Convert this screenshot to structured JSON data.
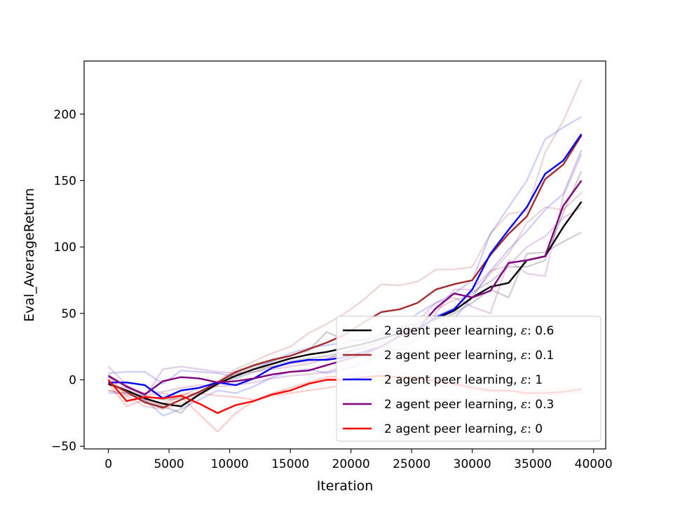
{
  "chart_data": {
    "type": "line",
    "title": "",
    "xlabel": "Iteration",
    "ylabel": "Eval_AverageReturn",
    "xlim": [
      -2000,
      41000
    ],
    "ylim": [
      -52,
      240
    ],
    "xticks": [
      0,
      5000,
      10000,
      15000,
      20000,
      25000,
      30000,
      35000,
      40000
    ],
    "yticks": [
      -50,
      0,
      50,
      100,
      150,
      200
    ],
    "xtick_labels": [
      "0",
      "5000",
      "10000",
      "15000",
      "20000",
      "25000",
      "30000",
      "35000",
      "40000"
    ],
    "ytick_labels": [
      "−50",
      "0",
      "50",
      "100",
      "150",
      "200"
    ],
    "grid": false,
    "legend_position": "lower right",
    "x": [
      0,
      1500,
      3000,
      4500,
      6000,
      7500,
      9000,
      10500,
      12000,
      13500,
      15000,
      16500,
      18000,
      19500,
      21000,
      22500,
      24000,
      25500,
      27000,
      28500,
      30000,
      31500,
      33000,
      34500,
      36000,
      37500,
      39000
    ],
    "series": [
      {
        "name": "2 agent peer learning, ε: 0.6",
        "legend_prefix": "2 agent peer learning, ",
        "legend_eps_label": "ε",
        "legend_value": ": 0.6",
        "color": "#000000",
        "values": [
          -3,
          -8,
          -14,
          -18,
          -20,
          -11,
          -3,
          3,
          8,
          12,
          16,
          19,
          21,
          24,
          27,
          31,
          35,
          39,
          46,
          52,
          62,
          70,
          73,
          90,
          93,
          115,
          134
        ],
        "runs": [
          [
            -8,
            -10,
            -16,
            -20,
            -25,
            -10,
            -2,
            1,
            6,
            10,
            14,
            16,
            18,
            21,
            24,
            28,
            32,
            38,
            44,
            50,
            58,
            68,
            62,
            95,
            96,
            104,
            111
          ],
          [
            2,
            -5,
            -12,
            -15,
            -14,
            -11,
            -4,
            5,
            10,
            14,
            18,
            22,
            36,
            30,
            30,
            34,
            40,
            42,
            48,
            54,
            66,
            74,
            85,
            85,
            90,
            126,
            157
          ]
        ]
      },
      {
        "name": "2 agent peer learning, ε: 0.1",
        "legend_prefix": "2 agent peer learning, ",
        "legend_eps_label": "ε",
        "legend_value": ": 0.1",
        "color": "#a52a2a",
        "values": [
          -2,
          -9,
          -17,
          -21,
          -15,
          -9,
          -2,
          6,
          11,
          15,
          18,
          23,
          28,
          34,
          43,
          51,
          53,
          58,
          68,
          72,
          75,
          94,
          110,
          123,
          151,
          162,
          184
        ],
        "runs": [
          [
            4,
            -6,
            -14,
            -20,
            -12,
            -6,
            -1,
            8,
            14,
            20,
            25,
            35,
            42,
            50,
            60,
            72,
            71,
            74,
            83,
            83,
            85,
            110,
            125,
            127,
            171,
            195,
            226
          ],
          [
            -8,
            -12,
            -20,
            -22,
            -18,
            -12,
            -3,
            4,
            8,
            10,
            12,
            14,
            16,
            20,
            26,
            30,
            35,
            42,
            53,
            60,
            64,
            80,
            95,
            118,
            130,
            128,
            141
          ]
        ]
      },
      {
        "name": "2 agent peer learning, ε: 1",
        "legend_prefix": "2 agent peer learning, ",
        "legend_eps_label": "ε",
        "legend_value": ": 1",
        "color": "#0000ff",
        "values": [
          -2,
          -2,
          -4,
          -14,
          -8,
          -6,
          -2,
          -4,
          1,
          9,
          13,
          15,
          15,
          17,
          21,
          25,
          33,
          38,
          47,
          53,
          68,
          95,
          113,
          130,
          155,
          165,
          185
        ],
        "runs": [
          [
            5,
            6,
            6,
            -3,
            7,
            6,
            5,
            2,
            8,
            14,
            20,
            24,
            26,
            28,
            30,
            32,
            38,
            50,
            58,
            65,
            75,
            110,
            130,
            150,
            181,
            190,
            198
          ],
          [
            -10,
            -10,
            -15,
            -27,
            -22,
            -15,
            -8,
            -10,
            -5,
            2,
            6,
            8,
            5,
            8,
            12,
            18,
            25,
            30,
            38,
            46,
            62,
            82,
            98,
            112,
            128,
            140,
            173
          ]
        ]
      },
      {
        "name": "2 agent peer learning, ε: 0.3",
        "legend_prefix": "2 agent peer learning, ",
        "legend_eps_label": "ε",
        "legend_value": ": 0.3",
        "color": "#800080",
        "values": [
          3,
          -5,
          -11,
          -1,
          2,
          1,
          -2,
          -1,
          1,
          4,
          6,
          7,
          11,
          15,
          19,
          25,
          33,
          38,
          54,
          65,
          62,
          67,
          88,
          90,
          93,
          131,
          150
        ],
        "runs": [
          [
            10,
            -4,
            -13,
            8,
            10,
            8,
            6,
            5,
            6,
            8,
            10,
            12,
            16,
            20,
            24,
            30,
            38,
            44,
            58,
            62,
            55,
            50,
            90,
            80,
            78,
            138,
            170
          ],
          [
            -4,
            -6,
            -10,
            -9,
            -6,
            -4,
            -5,
            -4,
            -2,
            1,
            3,
            4,
            6,
            10,
            14,
            20,
            28,
            34,
            50,
            68,
            68,
            82,
            86,
            100,
            108,
            122,
            130
          ]
        ]
      },
      {
        "name": "2 agent peer learning, ε: 0",
        "legend_prefix": "2 agent peer learning, ",
        "legend_eps_label": "ε",
        "legend_value": ": 0",
        "color": "#ff0000",
        "values": [
          0,
          -16,
          -13,
          -14,
          -12,
          -18,
          -25,
          -19,
          -16,
          -11,
          -8,
          -3,
          0,
          0,
          2,
          3,
          2,
          1,
          -1,
          -3,
          -6,
          -8,
          -8,
          -10,
          -10,
          -9,
          -7
        ],
        "runs": [
          [
            3,
            -12,
            -12,
            -10,
            -13,
            -26,
            -39,
            -25,
            -16,
            -10,
            -6,
            -2,
            2,
            3,
            5,
            6,
            5,
            4,
            2,
            0,
            -4,
            -7,
            -8,
            -12,
            -12,
            -11,
            -9
          ],
          [
            -3,
            -20,
            -15,
            -18,
            -11,
            -10,
            -12,
            -13,
            -15,
            -12,
            -10,
            -8,
            -6,
            -4,
            -2,
            0,
            0,
            -2,
            -4,
            -6,
            -8,
            -9,
            -9,
            -8,
            -8,
            -7,
            -5
          ]
        ]
      }
    ]
  }
}
